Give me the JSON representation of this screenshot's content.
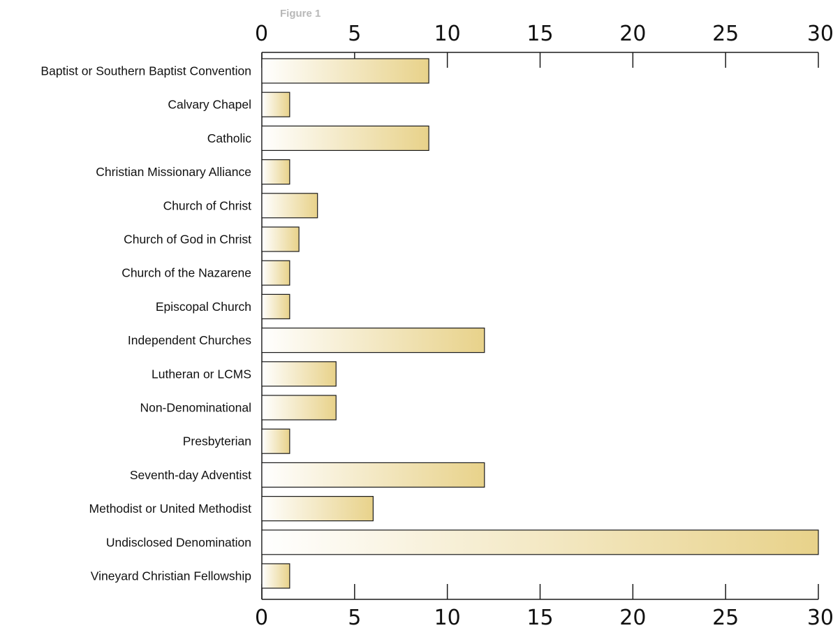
{
  "figure_label": "Figure 1",
  "chart_data": {
    "type": "bar",
    "orientation": "horizontal",
    "title": "",
    "xlabel": "",
    "ylabel": "",
    "xlim": [
      0,
      30
    ],
    "x_ticks": [
      0,
      5,
      10,
      15,
      20,
      25,
      30
    ],
    "x_tick_labels": [
      "0",
      "5",
      "10",
      "15",
      "20",
      "25",
      "30"
    ],
    "axis_labels_top_and_bottom": true,
    "grid": false,
    "categories": [
      "Baptist or Southern Baptist Convention",
      "Calvary Chapel",
      "Catholic",
      "Christian Missionary Alliance",
      "Church of Christ",
      "Church of God in Christ",
      "Church of the Nazarene",
      "Episcopal Church",
      "Independent Churches",
      "Lutheran or LCMS",
      "Non-Denominational",
      "Presbyterian",
      "Seventh-day Adventist",
      "Methodist or United Methodist",
      "Undisclosed Denomination",
      "Vineyard Christian Fellowship"
    ],
    "values": [
      9,
      1.5,
      9,
      1.5,
      3,
      2,
      1.5,
      1.5,
      12,
      4,
      4,
      1.5,
      12,
      6,
      30,
      1.5
    ],
    "colors": {
      "bar_gradient_start": "#ffffff",
      "bar_gradient_end": "#e8d28a",
      "bar_stroke": "#1a1a1a",
      "axis": "#1a1a1a",
      "figure_label": "#b8b8b8"
    }
  }
}
